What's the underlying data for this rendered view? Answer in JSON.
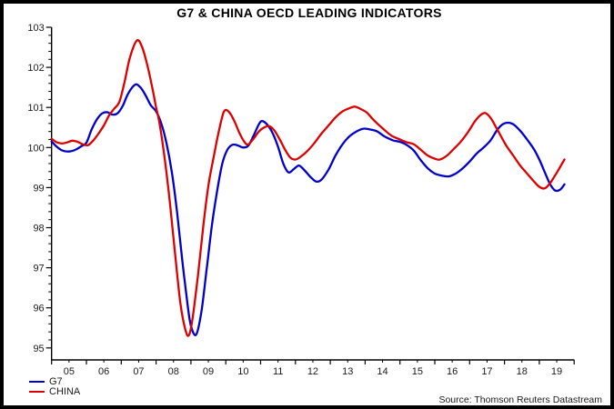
{
  "title": "G7 & CHINA OECD LEADING INDICATORS",
  "source_note": "Source: Thomson Reuters Datastream",
  "legend": [
    {
      "label": "G7",
      "color": "#0000cc"
    },
    {
      "label": "CHINA",
      "color": "#dd0000"
    }
  ],
  "colors": {
    "g7": "#0000cc",
    "china": "#dd0000",
    "axis": "#000000",
    "tick_text": "#1a1a1a"
  },
  "chart_data": {
    "type": "line",
    "title": "G7 & CHINA OECD LEADING INDICATORS",
    "xlabel": "",
    "ylabel": "",
    "x_unit": "year",
    "xlim": [
      2005,
      2020
    ],
    "ylim": [
      95,
      103
    ],
    "grid": false,
    "legend_position": "bottom-left",
    "y_major_ticks": [
      103,
      102,
      101,
      100,
      99,
      98,
      97,
      96,
      95
    ],
    "y_minor_step": 0.2,
    "x_tick_labels": [
      "05",
      "06",
      "07",
      "08",
      "09",
      "10",
      "11",
      "12",
      "13",
      "14",
      "15",
      "16",
      "17",
      "18",
      "19"
    ],
    "series": [
      {
        "name": "G7",
        "color": "#0000cc",
        "points": [
          [
            2005.0,
            100.15
          ],
          [
            2005.15,
            100.02
          ],
          [
            2005.3,
            99.93
          ],
          [
            2005.5,
            99.9
          ],
          [
            2005.7,
            99.95
          ],
          [
            2005.85,
            100.03
          ],
          [
            2006.0,
            100.12
          ],
          [
            2006.15,
            100.45
          ],
          [
            2006.3,
            100.7
          ],
          [
            2006.45,
            100.85
          ],
          [
            2006.6,
            100.88
          ],
          [
            2006.75,
            100.82
          ],
          [
            2006.9,
            100.86
          ],
          [
            2007.05,
            101.05
          ],
          [
            2007.2,
            101.35
          ],
          [
            2007.4,
            101.57
          ],
          [
            2007.55,
            101.5
          ],
          [
            2007.7,
            101.3
          ],
          [
            2007.85,
            101.05
          ],
          [
            2008.0,
            100.9
          ],
          [
            2008.15,
            100.6
          ],
          [
            2008.3,
            100.1
          ],
          [
            2008.45,
            99.4
          ],
          [
            2008.6,
            98.4
          ],
          [
            2008.75,
            97.2
          ],
          [
            2008.9,
            96.1
          ],
          [
            2009.0,
            95.55
          ],
          [
            2009.15,
            95.33
          ],
          [
            2009.3,
            95.9
          ],
          [
            2009.45,
            96.95
          ],
          [
            2009.6,
            98.05
          ],
          [
            2009.75,
            98.9
          ],
          [
            2009.9,
            99.6
          ],
          [
            2010.05,
            99.95
          ],
          [
            2010.2,
            100.07
          ],
          [
            2010.35,
            100.05
          ],
          [
            2010.5,
            100.0
          ],
          [
            2010.65,
            100.05
          ],
          [
            2010.8,
            100.3
          ],
          [
            2010.95,
            100.58
          ],
          [
            2011.05,
            100.66
          ],
          [
            2011.2,
            100.56
          ],
          [
            2011.35,
            100.35
          ],
          [
            2011.5,
            100.02
          ],
          [
            2011.65,
            99.6
          ],
          [
            2011.8,
            99.38
          ],
          [
            2011.95,
            99.46
          ],
          [
            2012.1,
            99.55
          ],
          [
            2012.25,
            99.44
          ],
          [
            2012.45,
            99.25
          ],
          [
            2012.6,
            99.15
          ],
          [
            2012.75,
            99.2
          ],
          [
            2012.95,
            99.45
          ],
          [
            2013.15,
            99.8
          ],
          [
            2013.35,
            100.08
          ],
          [
            2013.55,
            100.28
          ],
          [
            2013.75,
            100.4
          ],
          [
            2013.95,
            100.47
          ],
          [
            2014.15,
            100.45
          ],
          [
            2014.35,
            100.4
          ],
          [
            2014.55,
            100.28
          ],
          [
            2014.8,
            100.18
          ],
          [
            2015.0,
            100.14
          ],
          [
            2015.2,
            100.06
          ],
          [
            2015.4,
            99.92
          ],
          [
            2015.6,
            99.68
          ],
          [
            2015.8,
            99.48
          ],
          [
            2016.0,
            99.35
          ],
          [
            2016.2,
            99.3
          ],
          [
            2016.4,
            99.28
          ],
          [
            2016.6,
            99.35
          ],
          [
            2016.8,
            99.48
          ],
          [
            2017.0,
            99.65
          ],
          [
            2017.2,
            99.85
          ],
          [
            2017.4,
            100.0
          ],
          [
            2017.6,
            100.18
          ],
          [
            2017.8,
            100.45
          ],
          [
            2017.95,
            100.58
          ],
          [
            2018.1,
            100.62
          ],
          [
            2018.25,
            100.58
          ],
          [
            2018.45,
            100.42
          ],
          [
            2018.65,
            100.2
          ],
          [
            2018.85,
            99.95
          ],
          [
            2019.0,
            99.7
          ],
          [
            2019.15,
            99.4
          ],
          [
            2019.3,
            99.1
          ],
          [
            2019.45,
            98.93
          ],
          [
            2019.6,
            98.95
          ],
          [
            2019.72,
            99.08
          ]
        ]
      },
      {
        "name": "CHINA",
        "color": "#dd0000",
        "points": [
          [
            2005.0,
            100.22
          ],
          [
            2005.15,
            100.13
          ],
          [
            2005.3,
            100.1
          ],
          [
            2005.45,
            100.13
          ],
          [
            2005.6,
            100.17
          ],
          [
            2005.75,
            100.14
          ],
          [
            2005.9,
            100.08
          ],
          [
            2006.05,
            100.06
          ],
          [
            2006.2,
            100.18
          ],
          [
            2006.35,
            100.35
          ],
          [
            2006.5,
            100.55
          ],
          [
            2006.65,
            100.8
          ],
          [
            2006.8,
            100.97
          ],
          [
            2006.95,
            101.15
          ],
          [
            2007.1,
            101.65
          ],
          [
            2007.25,
            102.25
          ],
          [
            2007.45,
            102.67
          ],
          [
            2007.6,
            102.5
          ],
          [
            2007.75,
            102.05
          ],
          [
            2007.9,
            101.45
          ],
          [
            2008.0,
            101.0
          ],
          [
            2008.1,
            100.6
          ],
          [
            2008.25,
            99.7
          ],
          [
            2008.4,
            98.6
          ],
          [
            2008.55,
            97.3
          ],
          [
            2008.7,
            96.1
          ],
          [
            2008.85,
            95.42
          ],
          [
            2008.95,
            95.33
          ],
          [
            2009.05,
            95.75
          ],
          [
            2009.2,
            96.8
          ],
          [
            2009.35,
            98.0
          ],
          [
            2009.5,
            99.05
          ],
          [
            2009.65,
            99.75
          ],
          [
            2009.8,
            100.4
          ],
          [
            2009.95,
            100.9
          ],
          [
            2010.1,
            100.88
          ],
          [
            2010.25,
            100.65
          ],
          [
            2010.4,
            100.35
          ],
          [
            2010.55,
            100.12
          ],
          [
            2010.65,
            100.08
          ],
          [
            2010.8,
            100.22
          ],
          [
            2010.95,
            100.4
          ],
          [
            2011.1,
            100.5
          ],
          [
            2011.25,
            100.53
          ],
          [
            2011.4,
            100.42
          ],
          [
            2011.55,
            100.2
          ],
          [
            2011.7,
            99.95
          ],
          [
            2011.85,
            99.75
          ],
          [
            2012.0,
            99.7
          ],
          [
            2012.15,
            99.77
          ],
          [
            2012.35,
            99.92
          ],
          [
            2012.55,
            100.12
          ],
          [
            2012.75,
            100.35
          ],
          [
            2012.95,
            100.55
          ],
          [
            2013.15,
            100.75
          ],
          [
            2013.35,
            100.9
          ],
          [
            2013.55,
            100.98
          ],
          [
            2013.7,
            101.02
          ],
          [
            2013.85,
            100.97
          ],
          [
            2014.05,
            100.87
          ],
          [
            2014.25,
            100.68
          ],
          [
            2014.5,
            100.48
          ],
          [
            2014.75,
            100.3
          ],
          [
            2015.0,
            100.2
          ],
          [
            2015.2,
            100.13
          ],
          [
            2015.4,
            100.08
          ],
          [
            2015.6,
            99.94
          ],
          [
            2015.8,
            99.8
          ],
          [
            2016.0,
            99.72
          ],
          [
            2016.15,
            99.7
          ],
          [
            2016.35,
            99.8
          ],
          [
            2016.55,
            99.97
          ],
          [
            2016.75,
            100.15
          ],
          [
            2016.95,
            100.38
          ],
          [
            2017.15,
            100.65
          ],
          [
            2017.3,
            100.8
          ],
          [
            2017.45,
            100.86
          ],
          [
            2017.6,
            100.74
          ],
          [
            2017.75,
            100.52
          ],
          [
            2017.9,
            100.28
          ],
          [
            2018.05,
            100.05
          ],
          [
            2018.25,
            99.8
          ],
          [
            2018.45,
            99.55
          ],
          [
            2018.65,
            99.35
          ],
          [
            2018.85,
            99.15
          ],
          [
            2019.0,
            99.02
          ],
          [
            2019.15,
            98.98
          ],
          [
            2019.3,
            99.1
          ],
          [
            2019.45,
            99.3
          ],
          [
            2019.6,
            99.52
          ],
          [
            2019.72,
            99.7
          ]
        ]
      }
    ]
  }
}
